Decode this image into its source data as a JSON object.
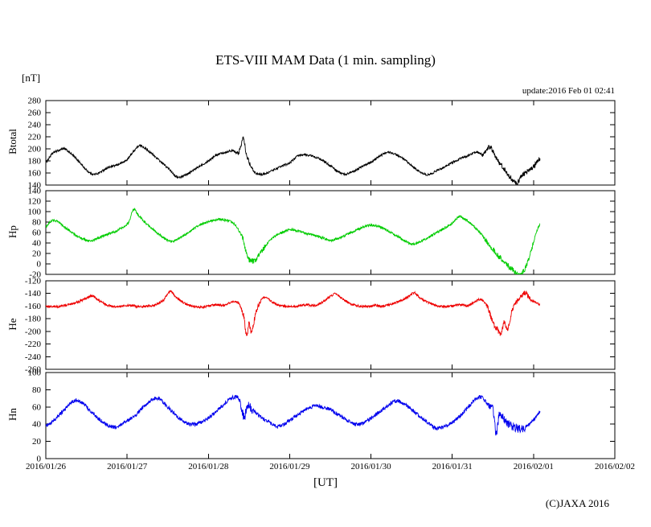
{
  "chart_data": {
    "type": "line",
    "title": "ETS-VIII MAM Data (1 min. sampling)",
    "y_unit_label": "[nT]",
    "update_label": "update:2016 Feb 01 02:41",
    "xlabel": "[UT]",
    "copyright": "(C)JAXA 2016",
    "x_tick_labels": [
      "2016/01/26",
      "2016/01/27",
      "2016/01/28",
      "2016/01/29",
      "2016/01/30",
      "2016/01/31",
      "2016/02/01",
      "2016/02/02"
    ],
    "x_range_days": [
      0,
      7
    ],
    "grid": false,
    "legend": "none",
    "panels": [
      {
        "name": "Btotal",
        "color": "#000000",
        "ylim": [
          140,
          280
        ],
        "yticks": [
          280,
          260,
          240,
          220,
          200,
          180,
          160,
          140
        ],
        "noise": 1.8,
        "noise_boost": [
          [
            2.36,
            2.52
          ],
          [
            5.35,
            6.09
          ]
        ],
        "points": [
          [
            0.0,
            178
          ],
          [
            0.08,
            192
          ],
          [
            0.15,
            197
          ],
          [
            0.22,
            200
          ],
          [
            0.3,
            193
          ],
          [
            0.4,
            180
          ],
          [
            0.5,
            165
          ],
          [
            0.58,
            158
          ],
          [
            0.65,
            160
          ],
          [
            0.75,
            168
          ],
          [
            0.85,
            172
          ],
          [
            0.92,
            176
          ],
          [
            1.0,
            182
          ],
          [
            1.08,
            196
          ],
          [
            1.15,
            205
          ],
          [
            1.22,
            201
          ],
          [
            1.32,
            190
          ],
          [
            1.42,
            178
          ],
          [
            1.52,
            166
          ],
          [
            1.62,
            153
          ],
          [
            1.7,
            156
          ],
          [
            1.8,
            163
          ],
          [
            1.9,
            172
          ],
          [
            2.0,
            180
          ],
          [
            2.1,
            190
          ],
          [
            2.2,
            194
          ],
          [
            2.3,
            197
          ],
          [
            2.36,
            193
          ],
          [
            2.4,
            203
          ],
          [
            2.43,
            221
          ],
          [
            2.46,
            196
          ],
          [
            2.5,
            178
          ],
          [
            2.56,
            163
          ],
          [
            2.62,
            158
          ],
          [
            2.7,
            159
          ],
          [
            2.8,
            165
          ],
          [
            2.9,
            171
          ],
          [
            3.0,
            177
          ],
          [
            3.1,
            188
          ],
          [
            3.2,
            190
          ],
          [
            3.3,
            187
          ],
          [
            3.4,
            181
          ],
          [
            3.5,
            172
          ],
          [
            3.6,
            162
          ],
          [
            3.68,
            158
          ],
          [
            3.78,
            163
          ],
          [
            3.88,
            170
          ],
          [
            4.0,
            178
          ],
          [
            4.1,
            187
          ],
          [
            4.2,
            194
          ],
          [
            4.3,
            191
          ],
          [
            4.4,
            183
          ],
          [
            4.5,
            172
          ],
          [
            4.6,
            162
          ],
          [
            4.7,
            157
          ],
          [
            4.8,
            163
          ],
          [
            4.9,
            170
          ],
          [
            5.0,
            177
          ],
          [
            5.1,
            184
          ],
          [
            5.2,
            189
          ],
          [
            5.3,
            195
          ],
          [
            5.38,
            189
          ],
          [
            5.45,
            203
          ],
          [
            5.5,
            196
          ],
          [
            5.55,
            182
          ],
          [
            5.62,
            170
          ],
          [
            5.7,
            155
          ],
          [
            5.78,
            143
          ],
          [
            5.82,
            148
          ],
          [
            5.86,
            156
          ],
          [
            5.92,
            162
          ],
          [
            6.0,
            170
          ],
          [
            6.05,
            179
          ],
          [
            6.08,
            184
          ]
        ]
      },
      {
        "name": "Hp",
        "color": "#00cc00",
        "ylim": [
          -20,
          140
        ],
        "yticks": [
          140,
          120,
          100,
          80,
          60,
          40,
          20,
          0,
          -20
        ],
        "noise": 2.2,
        "noise_boost": [
          [
            2.4,
            2.7
          ],
          [
            5.4,
            6.0
          ]
        ],
        "points": [
          [
            0.0,
            72
          ],
          [
            0.08,
            83
          ],
          [
            0.15,
            80
          ],
          [
            0.25,
            68
          ],
          [
            0.35,
            57
          ],
          [
            0.45,
            48
          ],
          [
            0.55,
            44
          ],
          [
            0.65,
            50
          ],
          [
            0.75,
            56
          ],
          [
            0.85,
            62
          ],
          [
            0.95,
            70
          ],
          [
            1.02,
            80
          ],
          [
            1.08,
            104
          ],
          [
            1.14,
            92
          ],
          [
            1.25,
            75
          ],
          [
            1.35,
            62
          ],
          [
            1.45,
            50
          ],
          [
            1.55,
            43
          ],
          [
            1.65,
            50
          ],
          [
            1.75,
            60
          ],
          [
            1.85,
            70
          ],
          [
            1.95,
            78
          ],
          [
            2.05,
            83
          ],
          [
            2.15,
            85
          ],
          [
            2.25,
            82
          ],
          [
            2.33,
            74
          ],
          [
            2.42,
            50
          ],
          [
            2.48,
            15
          ],
          [
            2.54,
            5
          ],
          [
            2.6,
            12
          ],
          [
            2.68,
            30
          ],
          [
            2.78,
            48
          ],
          [
            2.88,
            58
          ],
          [
            3.0,
            65
          ],
          [
            3.1,
            63
          ],
          [
            3.2,
            58
          ],
          [
            3.3,
            55
          ],
          [
            3.4,
            50
          ],
          [
            3.5,
            45
          ],
          [
            3.6,
            49
          ],
          [
            3.7,
            56
          ],
          [
            3.8,
            63
          ],
          [
            3.9,
            70
          ],
          [
            4.0,
            74
          ],
          [
            4.1,
            71
          ],
          [
            4.2,
            64
          ],
          [
            4.3,
            55
          ],
          [
            4.4,
            46
          ],
          [
            4.5,
            38
          ],
          [
            4.6,
            42
          ],
          [
            4.7,
            50
          ],
          [
            4.8,
            59
          ],
          [
            4.9,
            68
          ],
          [
            5.0,
            78
          ],
          [
            5.08,
            90
          ],
          [
            5.15,
            86
          ],
          [
            5.25,
            74
          ],
          [
            5.35,
            58
          ],
          [
            5.45,
            38
          ],
          [
            5.55,
            18
          ],
          [
            5.65,
            2
          ],
          [
            5.75,
            -12
          ],
          [
            5.82,
            -21
          ],
          [
            5.88,
            -14
          ],
          [
            5.93,
            5
          ],
          [
            5.98,
            30
          ],
          [
            6.03,
            58
          ],
          [
            6.08,
            76
          ]
        ]
      },
      {
        "name": "He",
        "color": "#ee0000",
        "ylim": [
          -260,
          -120
        ],
        "yticks": [
          -120,
          -140,
          -160,
          -180,
          -200,
          -220,
          -240,
          -260
        ],
        "noise": 1.8,
        "noise_boost": [
          [
            2.4,
            2.65
          ],
          [
            5.42,
            6.0
          ]
        ],
        "points": [
          [
            0.0,
            -160
          ],
          [
            0.1,
            -161
          ],
          [
            0.2,
            -160
          ],
          [
            0.3,
            -157
          ],
          [
            0.4,
            -153
          ],
          [
            0.5,
            -148
          ],
          [
            0.57,
            -144
          ],
          [
            0.65,
            -151
          ],
          [
            0.75,
            -158
          ],
          [
            0.85,
            -161
          ],
          [
            0.95,
            -160
          ],
          [
            1.05,
            -159
          ],
          [
            1.15,
            -161
          ],
          [
            1.25,
            -160
          ],
          [
            1.35,
            -158
          ],
          [
            1.45,
            -150
          ],
          [
            1.53,
            -137
          ],
          [
            1.6,
            -146
          ],
          [
            1.7,
            -155
          ],
          [
            1.8,
            -160
          ],
          [
            1.9,
            -162
          ],
          [
            2.0,
            -160
          ],
          [
            2.1,
            -158
          ],
          [
            2.2,
            -159
          ],
          [
            2.3,
            -153
          ],
          [
            2.38,
            -157
          ],
          [
            2.44,
            -178
          ],
          [
            2.47,
            -208
          ],
          [
            2.5,
            -188
          ],
          [
            2.53,
            -203
          ],
          [
            2.58,
            -172
          ],
          [
            2.64,
            -152
          ],
          [
            2.7,
            -146
          ],
          [
            2.78,
            -153
          ],
          [
            2.88,
            -159
          ],
          [
            3.0,
            -161
          ],
          [
            3.1,
            -160
          ],
          [
            3.2,
            -158
          ],
          [
            3.3,
            -159
          ],
          [
            3.4,
            -154
          ],
          [
            3.5,
            -145
          ],
          [
            3.57,
            -141
          ],
          [
            3.65,
            -149
          ],
          [
            3.75,
            -156
          ],
          [
            3.85,
            -160
          ],
          [
            3.95,
            -161
          ],
          [
            4.05,
            -159
          ],
          [
            4.15,
            -160
          ],
          [
            4.25,
            -157
          ],
          [
            4.35,
            -152
          ],
          [
            4.45,
            -146
          ],
          [
            4.53,
            -139
          ],
          [
            4.6,
            -147
          ],
          [
            4.7,
            -154
          ],
          [
            4.8,
            -159
          ],
          [
            4.9,
            -161
          ],
          [
            5.0,
            -160
          ],
          [
            5.1,
            -158
          ],
          [
            5.2,
            -159
          ],
          [
            5.28,
            -153
          ],
          [
            5.36,
            -150
          ],
          [
            5.44,
            -163
          ],
          [
            5.5,
            -186
          ],
          [
            5.55,
            -196
          ],
          [
            5.6,
            -203
          ],
          [
            5.64,
            -186
          ],
          [
            5.68,
            -198
          ],
          [
            5.73,
            -170
          ],
          [
            5.8,
            -152
          ],
          [
            5.86,
            -143
          ],
          [
            5.9,
            -139
          ],
          [
            5.95,
            -148
          ],
          [
            6.02,
            -154
          ],
          [
            6.08,
            -158
          ]
        ]
      },
      {
        "name": "Hn",
        "color": "#0000ee",
        "ylim": [
          0,
          100
        ],
        "yticks": [
          100,
          80,
          60,
          40,
          20,
          0
        ],
        "noise": 2.2,
        "noise_boost": [
          [
            2.38,
            2.55
          ],
          [
            5.45,
            5.9
          ]
        ],
        "points": [
          [
            0.0,
            38
          ],
          [
            0.1,
            44
          ],
          [
            0.2,
            54
          ],
          [
            0.3,
            64
          ],
          [
            0.38,
            68
          ],
          [
            0.48,
            62
          ],
          [
            0.58,
            52
          ],
          [
            0.68,
            44
          ],
          [
            0.78,
            38
          ],
          [
            0.88,
            37
          ],
          [
            1.0,
            44
          ],
          [
            1.1,
            50
          ],
          [
            1.2,
            60
          ],
          [
            1.3,
            68
          ],
          [
            1.38,
            70
          ],
          [
            1.48,
            62
          ],
          [
            1.58,
            52
          ],
          [
            1.68,
            44
          ],
          [
            1.78,
            40
          ],
          [
            1.88,
            41
          ],
          [
            2.0,
            47
          ],
          [
            2.1,
            55
          ],
          [
            2.2,
            64
          ],
          [
            2.3,
            71
          ],
          [
            2.38,
            69
          ],
          [
            2.44,
            48
          ],
          [
            2.48,
            62
          ],
          [
            2.55,
            56
          ],
          [
            2.65,
            48
          ],
          [
            2.75,
            42
          ],
          [
            2.85,
            37
          ],
          [
            3.0,
            44
          ],
          [
            3.1,
            51
          ],
          [
            3.2,
            57
          ],
          [
            3.3,
            61
          ],
          [
            3.4,
            60
          ],
          [
            3.5,
            57
          ],
          [
            3.6,
            51
          ],
          [
            3.7,
            45
          ],
          [
            3.8,
            40
          ],
          [
            3.9,
            41
          ],
          [
            4.0,
            47
          ],
          [
            4.1,
            54
          ],
          [
            4.2,
            61
          ],
          [
            4.3,
            67
          ],
          [
            4.4,
            64
          ],
          [
            4.5,
            57
          ],
          [
            4.6,
            49
          ],
          [
            4.7,
            42
          ],
          [
            4.8,
            35
          ],
          [
            4.9,
            37
          ],
          [
            5.0,
            42
          ],
          [
            5.1,
            50
          ],
          [
            5.2,
            60
          ],
          [
            5.3,
            70
          ],
          [
            5.36,
            71
          ],
          [
            5.44,
            63
          ],
          [
            5.5,
            58
          ],
          [
            5.54,
            30
          ],
          [
            5.58,
            52
          ],
          [
            5.64,
            45
          ],
          [
            5.7,
            40
          ],
          [
            5.78,
            36
          ],
          [
            5.86,
            34
          ],
          [
            5.94,
            40
          ],
          [
            6.02,
            47
          ],
          [
            6.08,
            55
          ]
        ]
      }
    ]
  }
}
